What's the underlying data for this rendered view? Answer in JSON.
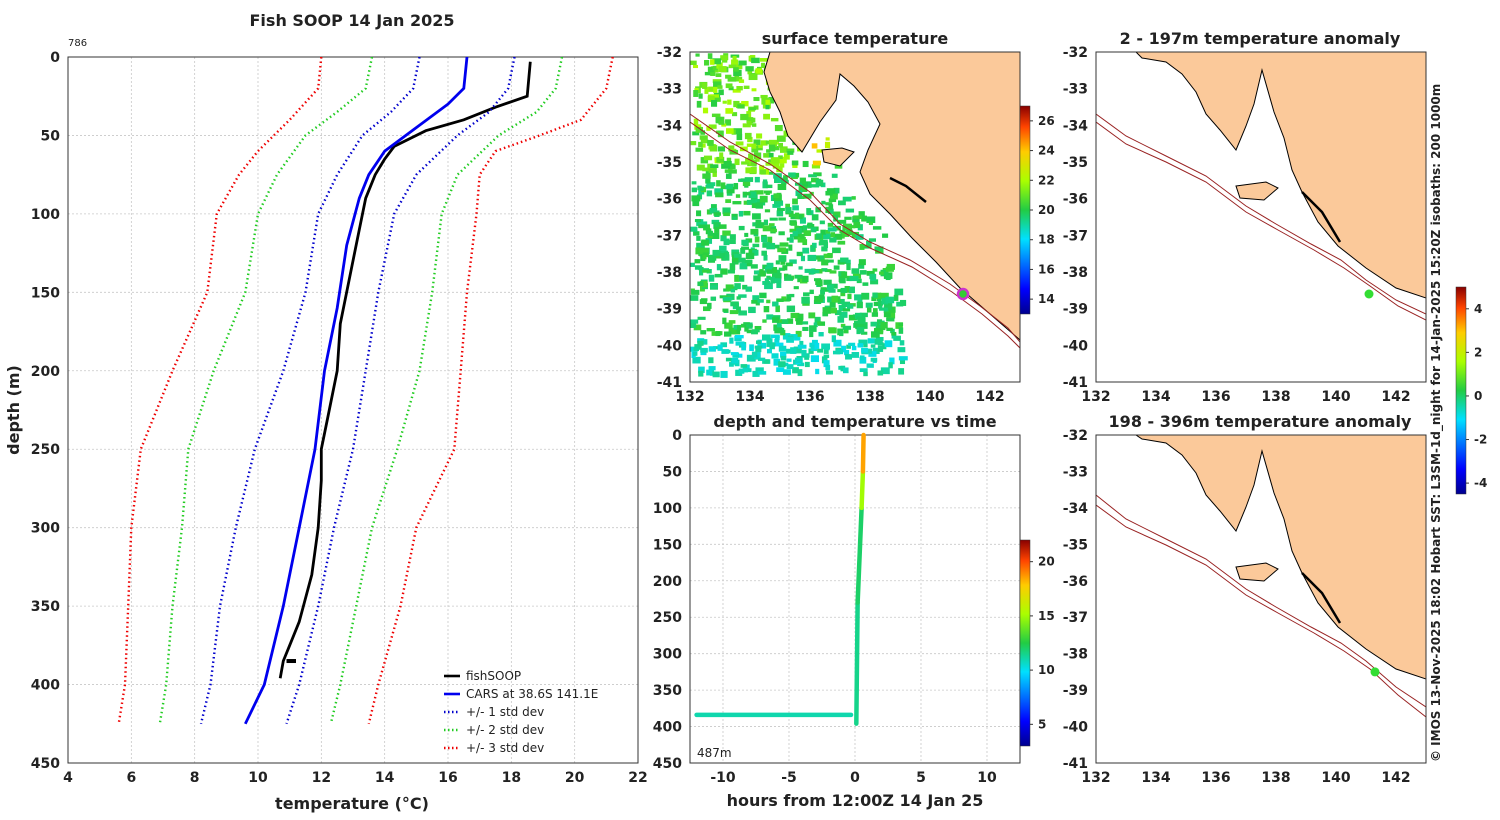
{
  "chart_data": [
    {
      "type": "line",
      "title": "Fish SOOP 14 Jan 2025",
      "note": "786",
      "xlabel": "temperature (°C)",
      "ylabel": "depth (m)",
      "xlim": [
        4,
        22
      ],
      "ylim": [
        0,
        450
      ],
      "xticks": [
        4,
        6,
        8,
        10,
        12,
        14,
        16,
        18,
        20,
        22
      ],
      "yticks": [
        0,
        50,
        100,
        150,
        200,
        250,
        300,
        350,
        400,
        450
      ],
      "legend_position": "bottom-right",
      "series": [
        {
          "name": "fishSOOP",
          "color": "#000000",
          "style": "solid",
          "points": [
            [
              18.6,
              3
            ],
            [
              18.5,
              25
            ],
            [
              17.5,
              32
            ],
            [
              16.5,
              40
            ],
            [
              15.3,
              47
            ],
            [
              14.3,
              57
            ],
            [
              14.0,
              65
            ],
            [
              13.7,
              75
            ],
            [
              13.4,
              90
            ],
            [
              13.2,
              110
            ],
            [
              12.9,
              140
            ],
            [
              12.6,
              170
            ],
            [
              12.5,
              200
            ],
            [
              12.2,
              230
            ],
            [
              12.0,
              250
            ],
            [
              12.0,
              270
            ],
            [
              11.9,
              300
            ],
            [
              11.7,
              330
            ],
            [
              11.3,
              360
            ],
            [
              11.0,
              375
            ],
            [
              10.8,
              385
            ],
            [
              10.7,
              396
            ]
          ]
        },
        {
          "name": "CARS at 38.6S 141.1E",
          "color": "#0000ee",
          "style": "solid",
          "points": [
            [
              16.6,
              0
            ],
            [
              16.5,
              20
            ],
            [
              16.0,
              30
            ],
            [
              15.0,
              45
            ],
            [
              14.0,
              60
            ],
            [
              13.5,
              75
            ],
            [
              13.2,
              90
            ],
            [
              12.8,
              120
            ],
            [
              12.5,
              160
            ],
            [
              12.1,
              200
            ],
            [
              11.8,
              250
            ],
            [
              11.3,
              300
            ],
            [
              10.8,
              350
            ],
            [
              10.2,
              400
            ],
            [
              9.6,
              425
            ]
          ]
        },
        {
          "name": "+/- 1 std dev",
          "color": "#0000cc",
          "style": "dotted",
          "points_low": [
            [
              15.1,
              0
            ],
            [
              14.9,
              20
            ],
            [
              14.2,
              35
            ],
            [
              13.3,
              50
            ],
            [
              12.5,
              75
            ],
            [
              11.9,
              100
            ],
            [
              11.5,
              150
            ],
            [
              10.8,
              200
            ],
            [
              9.9,
              250
            ],
            [
              9.3,
              300
            ],
            [
              8.8,
              350
            ],
            [
              8.5,
              400
            ],
            [
              8.2,
              425
            ]
          ],
          "points_high": [
            [
              18.1,
              0
            ],
            [
              17.9,
              20
            ],
            [
              17.3,
              35
            ],
            [
              16.3,
              50
            ],
            [
              15.0,
              75
            ],
            [
              14.3,
              100
            ],
            [
              13.8,
              150
            ],
            [
              13.4,
              200
            ],
            [
              13.0,
              250
            ],
            [
              12.4,
              300
            ],
            [
              11.9,
              350
            ],
            [
              11.3,
              400
            ],
            [
              10.9,
              425
            ]
          ]
        },
        {
          "name": "+/- 2 std dev",
          "color": "#22cc22",
          "style": "dotted",
          "points_low": [
            [
              13.6,
              0
            ],
            [
              13.4,
              20
            ],
            [
              12.5,
              35
            ],
            [
              11.5,
              50
            ],
            [
              10.6,
              75
            ],
            [
              10.0,
              100
            ],
            [
              9.6,
              150
            ],
            [
              8.6,
              200
            ],
            [
              7.8,
              250
            ],
            [
              7.6,
              300
            ],
            [
              7.3,
              350
            ],
            [
              7.1,
              400
            ],
            [
              6.9,
              425
            ]
          ],
          "points_high": [
            [
              19.6,
              0
            ],
            [
              19.4,
              20
            ],
            [
              18.8,
              35
            ],
            [
              17.6,
              50
            ],
            [
              16.3,
              75
            ],
            [
              15.8,
              100
            ],
            [
              15.5,
              150
            ],
            [
              15.1,
              200
            ],
            [
              14.4,
              250
            ],
            [
              13.6,
              300
            ],
            [
              13.1,
              350
            ],
            [
              12.6,
              400
            ],
            [
              12.3,
              425
            ]
          ]
        },
        {
          "name": "+/- 3 std dev",
          "color": "#ee0000",
          "style": "dotted",
          "points_low": [
            [
              12.0,
              0
            ],
            [
              11.9,
              20
            ],
            [
              11.0,
              40
            ],
            [
              10.0,
              60
            ],
            [
              9.4,
              75
            ],
            [
              8.7,
              100
            ],
            [
              8.4,
              150
            ],
            [
              7.3,
              200
            ],
            [
              6.3,
              250
            ],
            [
              6.0,
              300
            ],
            [
              5.9,
              350
            ],
            [
              5.8,
              400
            ],
            [
              5.6,
              425
            ]
          ],
          "points_high": [
            [
              21.2,
              0
            ],
            [
              21.0,
              20
            ],
            [
              20.2,
              40
            ],
            [
              18.9,
              50
            ],
            [
              17.5,
              60
            ],
            [
              17.0,
              75
            ],
            [
              16.9,
              100
            ],
            [
              16.6,
              150
            ],
            [
              16.4,
              200
            ],
            [
              16.2,
              250
            ],
            [
              15.0,
              300
            ],
            [
              14.5,
              350
            ],
            [
              13.8,
              400
            ],
            [
              13.5,
              425
            ]
          ]
        }
      ]
    },
    {
      "type": "heatmap",
      "title": "surface temperature",
      "xlim": [
        132,
        143
      ],
      "ylim": [
        -41,
        -32
      ],
      "xticks": [
        132,
        134,
        136,
        138,
        140,
        142
      ],
      "yticks": [
        -32,
        -33,
        -34,
        -35,
        -36,
        -37,
        -38,
        -39,
        -40,
        -41
      ],
      "colorbar_ticks": [
        14,
        16,
        18,
        20,
        22,
        24,
        26
      ],
      "colorbar_range": [
        13,
        27
      ],
      "position_marker": {
        "lon": 141.1,
        "lat": -38.6,
        "color": "#cc33cc"
      }
    },
    {
      "type": "heatmap",
      "title": "2 - 197m temperature anomaly",
      "xlim": [
        132,
        143
      ],
      "ylim": [
        -41,
        -32
      ],
      "xticks": [
        132,
        134,
        136,
        138,
        140,
        142
      ],
      "yticks": [
        -32,
        -33,
        -34,
        -35,
        -36,
        -37,
        -38,
        -39,
        -40,
        -41
      ],
      "colorbar_ticks": [
        -4,
        -2,
        0,
        2,
        4
      ],
      "colorbar_range": [
        -4.5,
        5
      ],
      "position_marker": {
        "lon": 141.1,
        "lat": -38.6,
        "color": "#33dd33"
      }
    },
    {
      "type": "scatter",
      "title": "depth and temperature vs time",
      "xlabel": "hours from 12:00Z 14 Jan 25",
      "ylabel": "",
      "xlim": [
        -12.5,
        12.5
      ],
      "ylim": [
        0,
        450
      ],
      "xticks": [
        -10,
        -5,
        0,
        5,
        10
      ],
      "yticks": [
        0,
        50,
        100,
        150,
        200,
        250,
        300,
        350,
        400,
        450
      ],
      "annotation": "487m",
      "colorbar_ticks": [
        5,
        10,
        15,
        20
      ],
      "colorbar_range": [
        3,
        22
      ],
      "segments": [
        {
          "from": [
            -12.0,
            384
          ],
          "to": [
            -0.3,
            384
          ],
          "temp": 11
        },
        {
          "from": [
            0.1,
            396
          ],
          "to": [
            0.2,
            230
          ],
          "temp": 11.5
        },
        {
          "from": [
            0.2,
            230
          ],
          "to": [
            0.5,
            100
          ],
          "temp": 12
        },
        {
          "from": [
            0.5,
            100
          ],
          "to": [
            0.6,
            50
          ],
          "temp": 15
        },
        {
          "from": [
            0.6,
            50
          ],
          "to": [
            0.65,
            0
          ],
          "temp": 18.5
        }
      ]
    },
    {
      "type": "heatmap",
      "title": "198 - 396m temperature anomaly",
      "xlim": [
        132,
        143
      ],
      "ylim": [
        -41,
        -32
      ],
      "xticks": [
        132,
        134,
        136,
        138,
        140,
        142
      ],
      "yticks": [
        -32,
        -33,
        -34,
        -35,
        -36,
        -37,
        -38,
        -39,
        -40,
        -41
      ],
      "position_marker": {
        "lon": 141.3,
        "lat": -38.5,
        "color": "#33dd33"
      }
    }
  ],
  "credit": "© IMOS 13-Nov-2025 18:02 Hobart SST: L3SM-1d_night for 14-Jan-2025 15:20Z isobaths: 200  1000m"
}
